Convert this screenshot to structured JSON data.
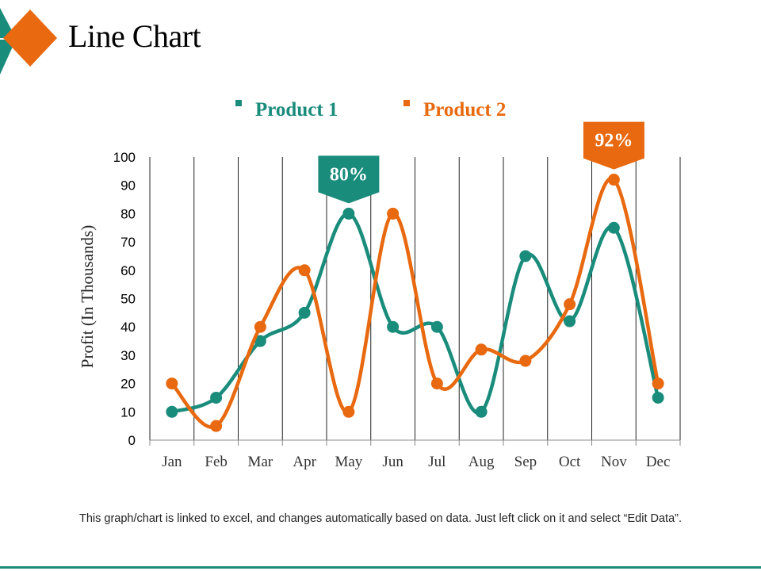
{
  "slide": {
    "title": "Line Chart",
    "footnote": "This graph/chart is linked to excel, and changes automatically based on data. Just left click on it and select “Edit Data”.",
    "colors": {
      "teal": "#1a8c7c",
      "orange": "#e8690f"
    }
  },
  "chart_data": {
    "type": "line",
    "categories": [
      "Jan",
      "Feb",
      "Mar",
      "Apr",
      "May",
      "Jun",
      "Jul",
      "Aug",
      "Sep",
      "Oct",
      "Nov",
      "Dec"
    ],
    "series": [
      {
        "name": "Product 1",
        "color": "#1a8c7c",
        "values": [
          10,
          15,
          35,
          45,
          80,
          40,
          40,
          10,
          65,
          42,
          75,
          15
        ]
      },
      {
        "name": "Product 2",
        "color": "#e8690f",
        "values": [
          20,
          5,
          40,
          60,
          10,
          80,
          20,
          32,
          28,
          48,
          92,
          20
        ]
      }
    ],
    "ylabel": "Profit (In Thousands)",
    "xlabel": "",
    "ylim": [
      0,
      100
    ],
    "yticks": [
      "0",
      "10",
      "20",
      "30",
      "40",
      "50",
      "60",
      "70",
      "80",
      "90",
      "100"
    ],
    "grid": "vertical",
    "legend": "top",
    "annotations": [
      {
        "series": "Product 1",
        "category": "May",
        "value": 80,
        "label": "80%"
      },
      {
        "series": "Product 2",
        "category": "Nov",
        "value": 92,
        "label": "92%"
      }
    ]
  }
}
